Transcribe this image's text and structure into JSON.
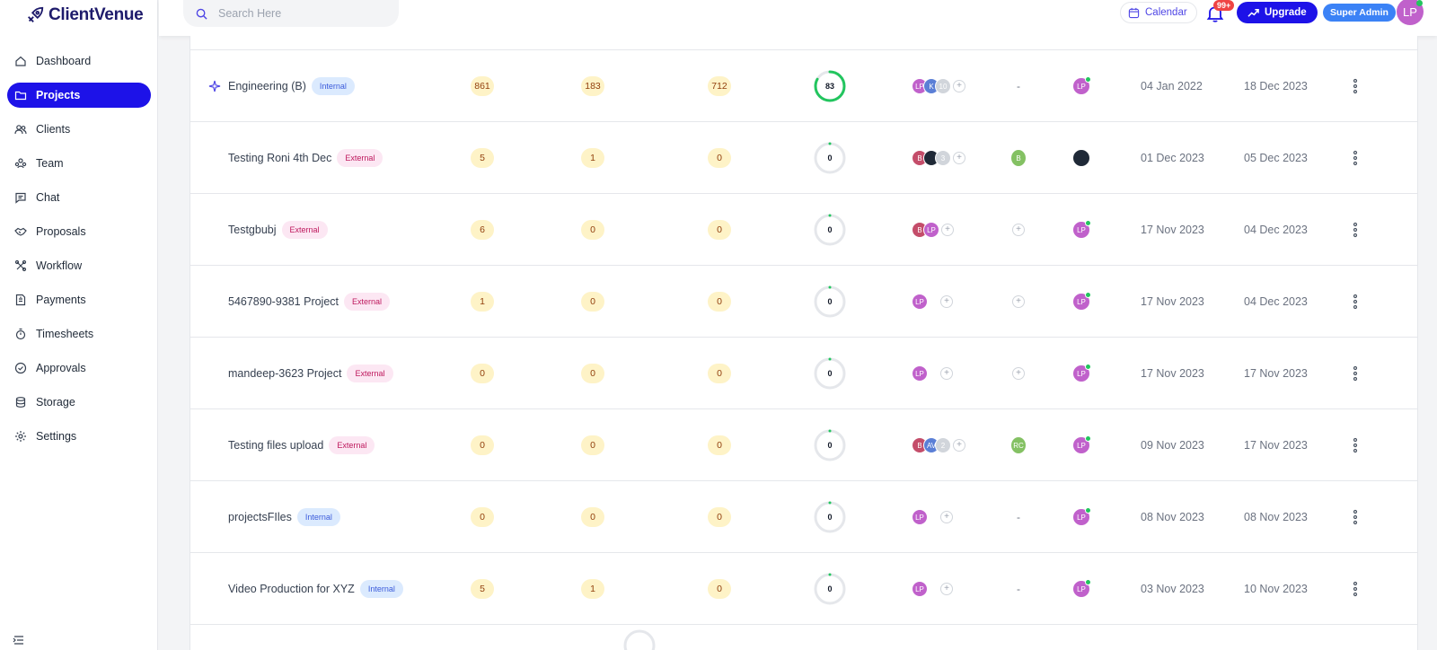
{
  "app": {
    "logo_text": "ClientVenue"
  },
  "sidebar": {
    "items": [
      {
        "label": "Dashboard",
        "icon": "home-icon",
        "active": false
      },
      {
        "label": "Projects",
        "icon": "folder-icon",
        "active": true
      },
      {
        "label": "Clients",
        "icon": "users-icon",
        "active": false
      },
      {
        "label": "Team",
        "icon": "team-icon",
        "active": false
      },
      {
        "label": "Chat",
        "icon": "chat-icon",
        "active": false
      },
      {
        "label": "Proposals",
        "icon": "handshake-icon",
        "active": false
      },
      {
        "label": "Workflow",
        "icon": "workflow-icon",
        "active": false
      },
      {
        "label": "Payments",
        "icon": "invoice-icon",
        "active": false
      },
      {
        "label": "Timesheets",
        "icon": "stopwatch-icon",
        "active": false
      },
      {
        "label": "Approvals",
        "icon": "check-circle-icon",
        "active": false
      },
      {
        "label": "Storage",
        "icon": "database-icon",
        "active": false
      },
      {
        "label": "Settings",
        "icon": "gear-icon",
        "active": false
      }
    ]
  },
  "header": {
    "search_placeholder": "Search Here",
    "calendar_label": "Calendar",
    "notification_count": "99+",
    "upgrade_label": "Upgrade",
    "role_label": "Super Admin",
    "user_initials": "LP"
  },
  "colors": {
    "accent": "#1d12e8",
    "progress_complete": "#22c55e",
    "count_badge_bg": "#fef3c7",
    "internal_tag_bg": "#dbeafe",
    "external_tag_bg": "#fce7f3"
  },
  "projects": [
    {
      "name": "Engineering (B)",
      "tag": "Internal",
      "pinned": true,
      "count1": "861",
      "count2": "183",
      "count3": "712",
      "progress": "83",
      "members": [
        {
          "i": "LP",
          "c": "pink"
        },
        {
          "i": "K",
          "c": "blue"
        },
        {
          "i": "10",
          "c": "more"
        }
      ],
      "client": "-",
      "client_color": "",
      "owner": "LP",
      "owner_color": "pink",
      "owner_online": true,
      "start": "04 Jan 2022",
      "end": "18 Dec 2023"
    },
    {
      "name": "Testing Roni 4th Dec",
      "tag": "External",
      "pinned": false,
      "count1": "5",
      "count2": "1",
      "count3": "0",
      "progress": "0",
      "members": [
        {
          "i": "B",
          "c": "red"
        },
        {
          "i": "",
          "c": "dark"
        },
        {
          "i": "3",
          "c": "more"
        }
      ],
      "client": "B",
      "client_color": "green",
      "owner": "",
      "owner_color": "dark",
      "owner_online": false,
      "start": "01 Dec 2023",
      "end": "05 Dec 2023"
    },
    {
      "name": "Testgbubj",
      "tag": "External",
      "pinned": false,
      "count1": "6",
      "count2": "0",
      "count3": "0",
      "progress": "0",
      "members": [
        {
          "i": "B",
          "c": "red"
        },
        {
          "i": "LP",
          "c": "pink"
        }
      ],
      "client": "+",
      "client_color": "",
      "owner": "LP",
      "owner_color": "pink",
      "owner_online": true,
      "start": "17 Nov 2023",
      "end": "04 Dec 2023"
    },
    {
      "name": "5467890-9381 Project",
      "tag": "External",
      "pinned": false,
      "count1": "1",
      "count2": "0",
      "count3": "0",
      "progress": "0",
      "members": [
        {
          "i": "LP",
          "c": "pink"
        }
      ],
      "client": "+",
      "client_color": "",
      "owner": "LP",
      "owner_color": "pink",
      "owner_online": true,
      "start": "17 Nov 2023",
      "end": "04 Dec 2023"
    },
    {
      "name": "mandeep-3623 Project",
      "tag": "External",
      "pinned": false,
      "count1": "0",
      "count2": "0",
      "count3": "0",
      "progress": "0",
      "members": [
        {
          "i": "LP",
          "c": "pink"
        }
      ],
      "client": "+",
      "client_color": "",
      "owner": "LP",
      "owner_color": "pink",
      "owner_online": true,
      "start": "17 Nov 2023",
      "end": "17 Nov 2023"
    },
    {
      "name": "Testing files upload",
      "tag": "External",
      "pinned": false,
      "count1": "0",
      "count2": "0",
      "count3": "0",
      "progress": "0",
      "members": [
        {
          "i": "B",
          "c": "red"
        },
        {
          "i": "AV",
          "c": "blue"
        },
        {
          "i": "2",
          "c": "more"
        }
      ],
      "client": "RC",
      "client_color": "green",
      "owner": "LP",
      "owner_color": "pink",
      "owner_online": true,
      "start": "09 Nov 2023",
      "end": "17 Nov 2023"
    },
    {
      "name": "projectsFIles",
      "tag": "Internal",
      "pinned": false,
      "count1": "0",
      "count2": "0",
      "count3": "0",
      "progress": "0",
      "members": [
        {
          "i": "LP",
          "c": "pink"
        }
      ],
      "client": "-",
      "client_color": "",
      "owner": "LP",
      "owner_color": "pink",
      "owner_online": true,
      "start": "08 Nov 2023",
      "end": "08 Nov 2023"
    },
    {
      "name": "Video Production for XYZ",
      "tag": "Internal",
      "pinned": false,
      "count1": "5",
      "count2": "1",
      "count3": "0",
      "progress": "0",
      "members": [
        {
          "i": "LP",
          "c": "pink"
        }
      ],
      "client": "-",
      "client_color": "",
      "owner": "LP",
      "owner_color": "pink",
      "owner_online": true,
      "start": "03 Nov 2023",
      "end": "10 Nov 2023"
    }
  ]
}
